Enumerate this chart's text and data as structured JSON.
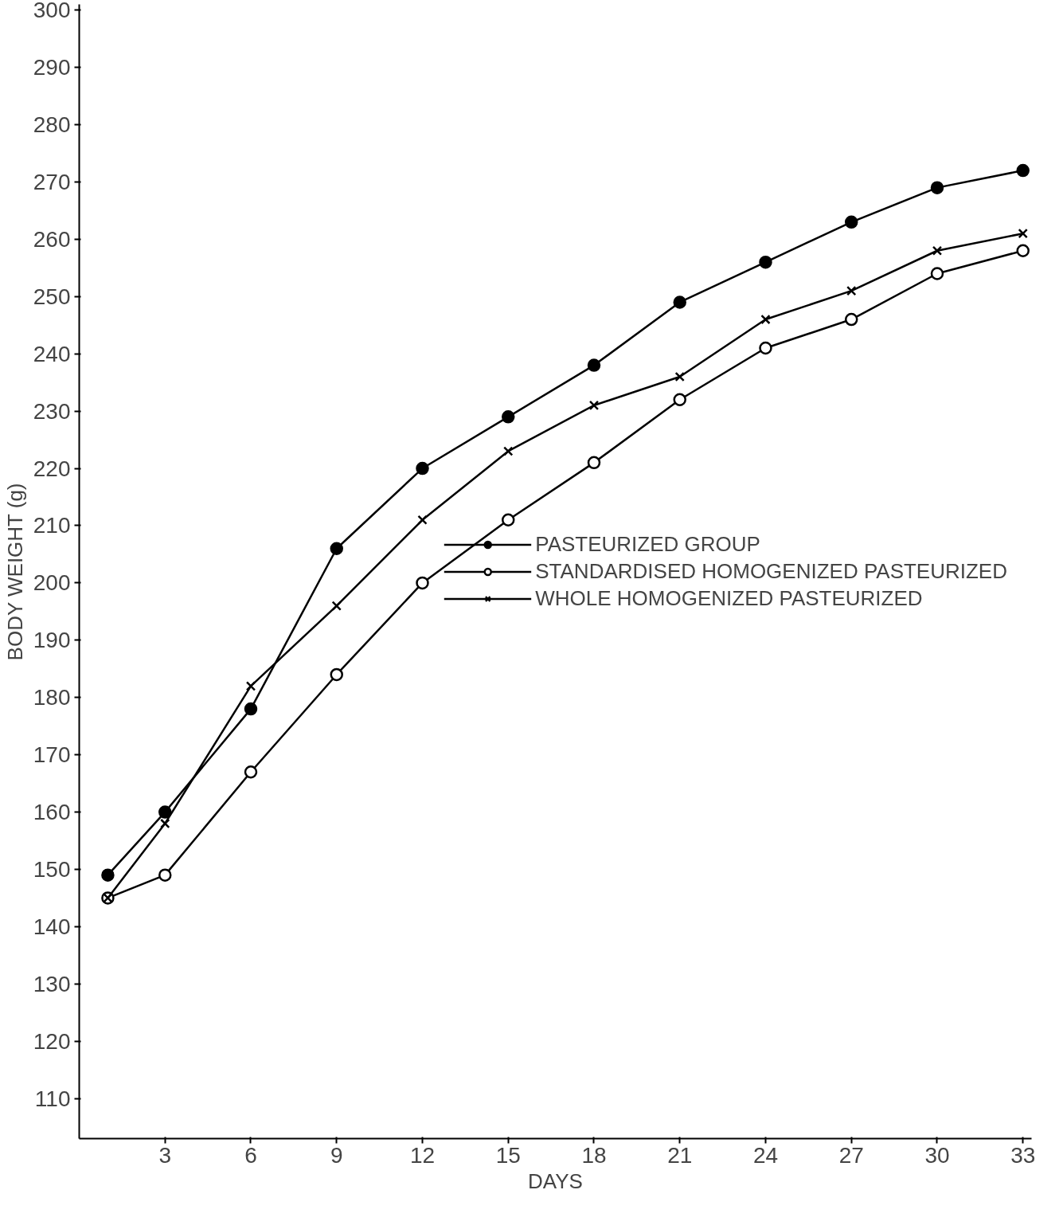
{
  "chart_data": {
    "type": "line",
    "xlabel": "DAYS",
    "ylabel": "BODY WEIGHT (g)",
    "x": [
      1,
      3,
      6,
      9,
      12,
      15,
      18,
      21,
      24,
      27,
      30,
      33
    ],
    "series": [
      {
        "name": "PASTEURIZED GROUP",
        "color": "#000000",
        "marker": "circle",
        "values": [
          149,
          160,
          178,
          206,
          220,
          229,
          238,
          249,
          256,
          263,
          269,
          272
        ]
      },
      {
        "name": "STANDARDISED HOMOGENIZED PASTEURIZED",
        "color": "#000000",
        "marker": "circle",
        "values": [
          145,
          149,
          167,
          184,
          200,
          211,
          221,
          232,
          241,
          246,
          254,
          258
        ]
      },
      {
        "name": "WHOLE HOMOGENIZED PASTEURIZED",
        "color": "#000000",
        "marker": "cross",
        "values": [
          145,
          158,
          182,
          196,
          211,
          223,
          231,
          236,
          246,
          251,
          258,
          261
        ]
      }
    ],
    "xlim": [
      0,
      33.3
    ],
    "ylim": [
      103,
      301
    ],
    "xticks": [
      3,
      6,
      9,
      12,
      15,
      18,
      21,
      24,
      27,
      30,
      33
    ],
    "yticks": [
      110,
      120,
      130,
      140,
      150,
      160,
      170,
      180,
      190,
      200,
      210,
      220,
      230,
      240,
      250,
      260,
      270,
      280,
      290,
      300
    ],
    "grid": false,
    "legend": "right",
    "line_style": "solid"
  }
}
